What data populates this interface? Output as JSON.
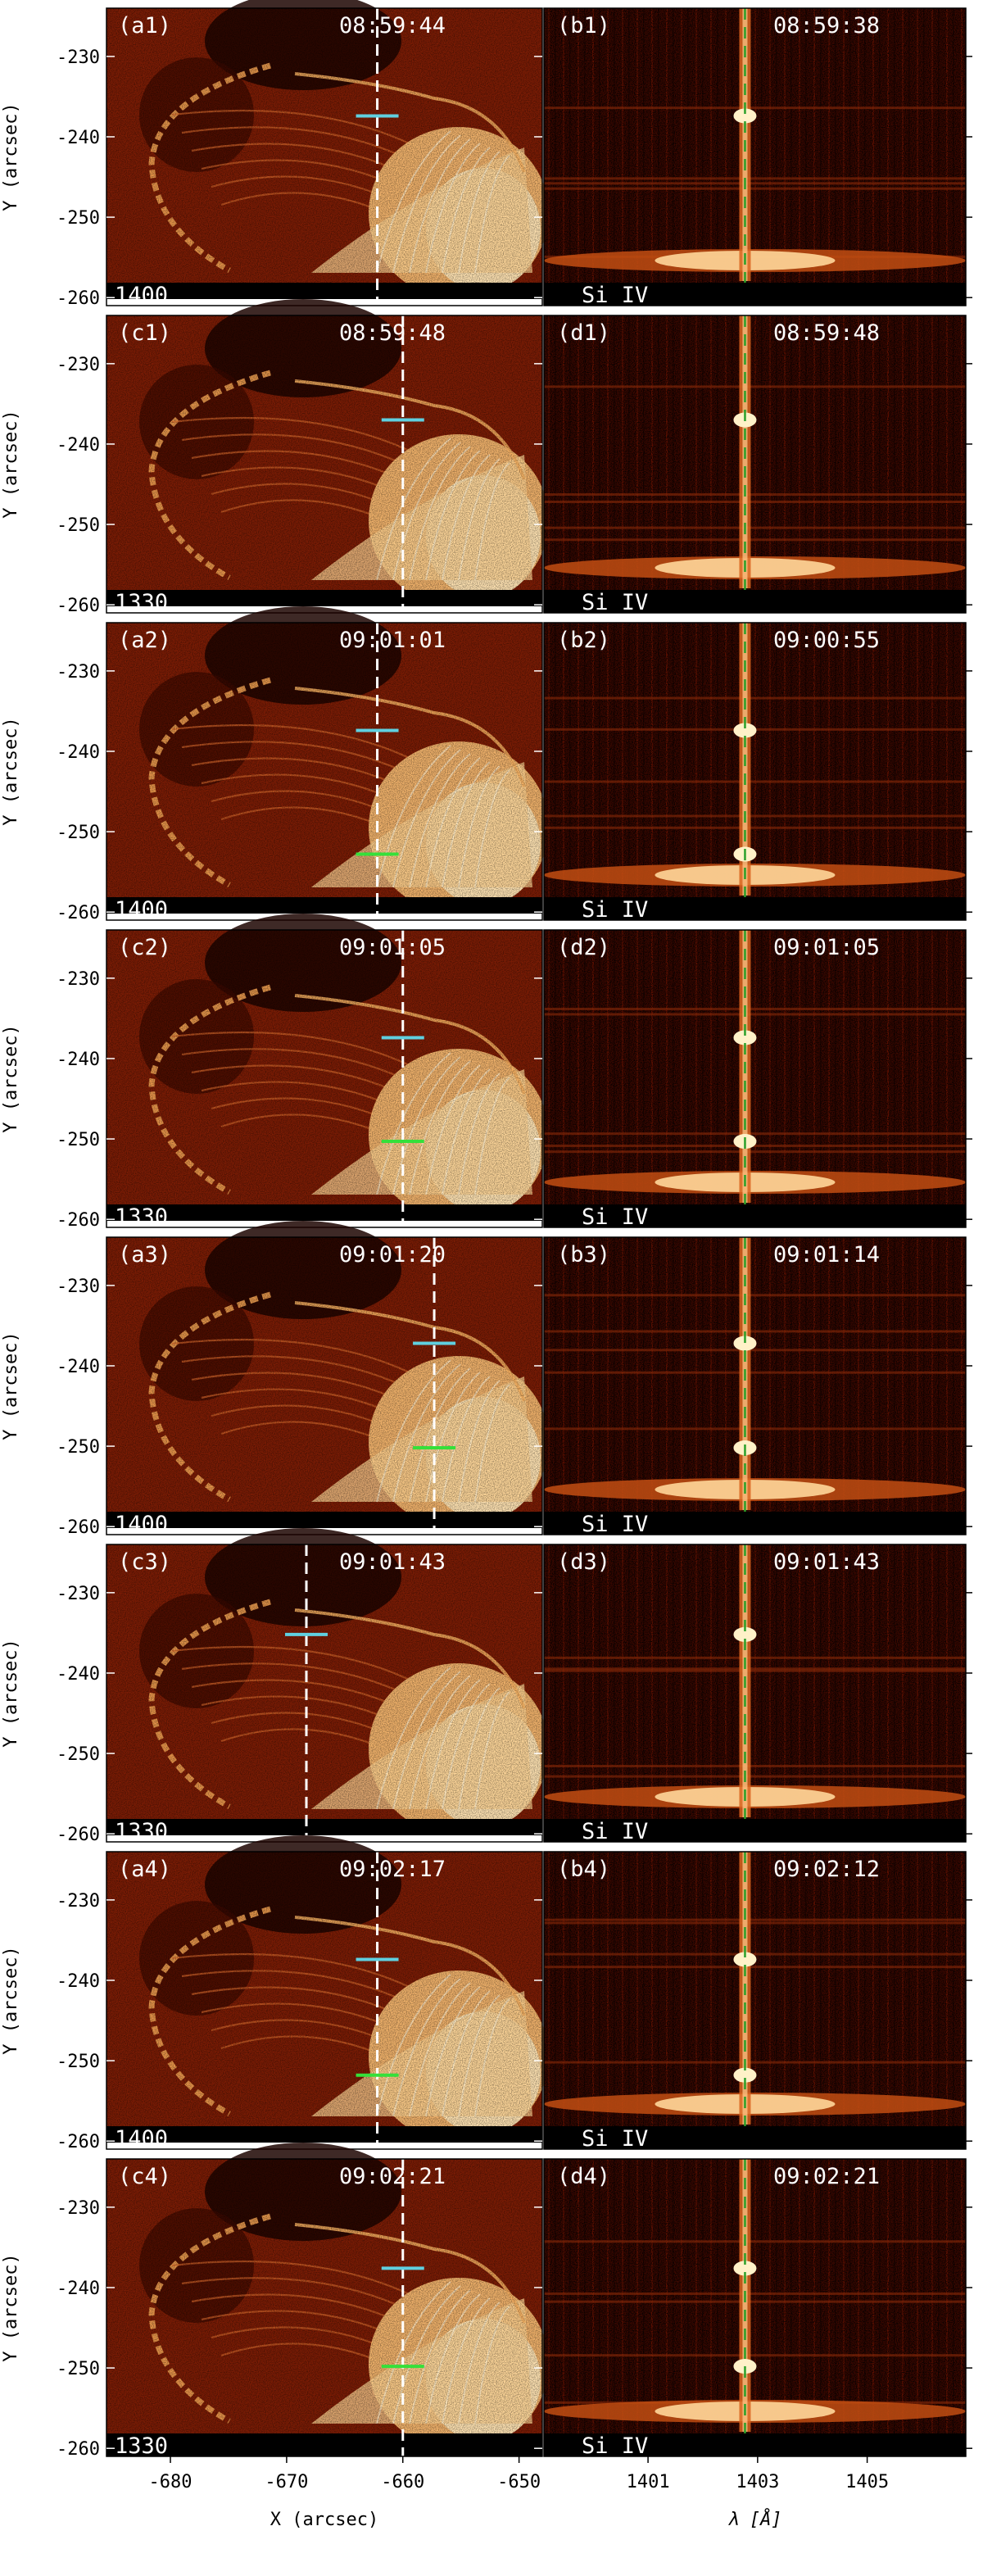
{
  "rows": [
    {
      "left": {
        "label": "(a1)",
        "time": "08:59:44",
        "wl": "1400"
      },
      "right": {
        "label": "(b1)",
        "time": "08:59:38",
        "line": "Si IV"
      },
      "slit_x": -662.2,
      "cyan_y": -237.4,
      "green_y": null
    },
    {
      "left": {
        "label": "(c1)",
        "time": "08:59:48",
        "wl": "1330"
      },
      "right": {
        "label": "(d1)",
        "time": "08:59:48",
        "line": "Si IV"
      },
      "slit_x": -660.0,
      "cyan_y": -237.0,
      "green_y": null
    },
    {
      "left": {
        "label": "(a2)",
        "time": "09:01:01",
        "wl": "1400"
      },
      "right": {
        "label": "(b2)",
        "time": "09:00:55",
        "line": "Si IV"
      },
      "slit_x": -662.2,
      "cyan_y": -237.4,
      "green_y": -252.8
    },
    {
      "left": {
        "label": "(c2)",
        "time": "09:01:05",
        "wl": "1330"
      },
      "right": {
        "label": "(d2)",
        "time": "09:01:05",
        "line": "Si IV"
      },
      "slit_x": -660.0,
      "cyan_y": -237.4,
      "green_y": -250.3
    },
    {
      "left": {
        "label": "(a3)",
        "time": "09:01:20",
        "wl": "1400"
      },
      "right": {
        "label": "(b3)",
        "time": "09:01:14",
        "line": "Si IV"
      },
      "slit_x": -657.3,
      "cyan_y": -237.2,
      "green_y": -250.2
    },
    {
      "left": {
        "label": "(c3)",
        "time": "09:01:43",
        "wl": "1330"
      },
      "right": {
        "label": "(d3)",
        "time": "09:01:43",
        "line": "Si IV"
      },
      "slit_x": -668.3,
      "cyan_y": -235.2,
      "green_y": null
    },
    {
      "left": {
        "label": "(a4)",
        "time": "09:02:17",
        "wl": "1400"
      },
      "right": {
        "label": "(b4)",
        "time": "09:02:12",
        "line": "Si IV"
      },
      "slit_x": -662.2,
      "cyan_y": -237.4,
      "green_y": -251.8
    },
    {
      "left": {
        "label": "(c4)",
        "time": "09:02:21",
        "wl": "1330"
      },
      "right": {
        "label": "(d4)",
        "time": "09:02:21",
        "line": "Si IV"
      },
      "slit_x": -660.0,
      "cyan_y": -237.6,
      "green_y": -249.8
    }
  ],
  "axes": {
    "ylabel": "Y (arcsec)",
    "xlabel": "X (arcsec)",
    "lambda_label": "λ [Å]",
    "y_ticks": [
      -230,
      -240,
      -250,
      -260
    ],
    "x_ticks": [
      -680,
      -670,
      -660,
      -650
    ],
    "lambda_ticks": [
      1401,
      1403,
      1405
    ],
    "x_range": [
      -685.5,
      -648
    ],
    "y_range": [
      -261,
      -224
    ],
    "lambda_range": [
      1399.1,
      1406.8
    ],
    "line_center": 1402.77
  },
  "colors": {
    "slit": "#ffffff",
    "cyan": "#5fd0e0",
    "green": "#35e03a",
    "spectral_center": "#2aa02a"
  }
}
